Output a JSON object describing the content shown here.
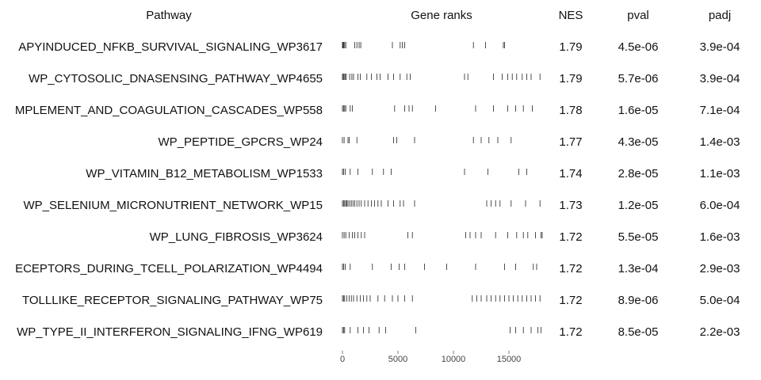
{
  "chart_data": {
    "type": "gsea_table",
    "columns": [
      "Pathway",
      "Gene ranks",
      "NES",
      "pval",
      "padj"
    ],
    "xlim": [
      0,
      18000
    ],
    "xticks": [
      0,
      5000,
      10000,
      15000
    ],
    "rows": [
      {
        "pathway": "APYINDUCED_NFKB_SURVIVAL_SIGNALING_WP3617",
        "nes": 1.79,
        "pval": "4.5e-06",
        "padj": "3.9e-04",
        "ranks": [
          0,
          60,
          120,
          200,
          300,
          1100,
          1300,
          1500,
          1650,
          4500,
          5200,
          5400,
          5600,
          11800,
          12900,
          14500,
          14600
        ]
      },
      {
        "pathway": "WP_CYTOSOLIC_DNASENSING_PATHWAY_WP4655",
        "nes": 1.79,
        "pval": "5.7e-06",
        "padj": "3.9e-04",
        "ranks": [
          0,
          80,
          150,
          250,
          350,
          650,
          850,
          1000,
          1400,
          1600,
          2200,
          2600,
          3100,
          3400,
          4100,
          4600,
          5200,
          5800,
          6100,
          11000,
          11300,
          13600,
          14400,
          14900,
          15300,
          15700,
          16200,
          16600,
          17000,
          17800
        ]
      },
      {
        "pathway": "MPLEMENT_AND_COAGULATION_CASCADES_WP558",
        "nes": 1.78,
        "pval": "1.6e-05",
        "padj": "7.1e-04",
        "ranks": [
          0,
          100,
          200,
          300,
          700,
          900,
          4700,
          5600,
          6000,
          6300,
          8400,
          12000,
          13600,
          14900,
          15600,
          16300,
          17100
        ]
      },
      {
        "pathway": "WP_PEPTIDE_GPCRS_WP24",
        "nes": 1.77,
        "pval": "4.3e-05",
        "padj": "1.4e-03",
        "ranks": [
          0,
          150,
          500,
          600,
          1300,
          4600,
          4900,
          6500,
          11800,
          12500,
          13200,
          14000,
          15200
        ]
      },
      {
        "pathway": "WP_VITAMIN_B12_METABOLISM_WP1533",
        "nes": 1.74,
        "pval": "2.8e-05",
        "padj": "1.1e-03",
        "ranks": [
          0,
          100,
          250,
          700,
          1400,
          2700,
          3700,
          4400,
          11000,
          13100,
          15900,
          16600
        ]
      },
      {
        "pathway": "WP_SELENIUM_MICRONUTRIENT_NETWORK_WP15",
        "nes": 1.73,
        "pval": "1.2e-05",
        "padj": "6.0e-04",
        "ranks": [
          0,
          100,
          200,
          300,
          400,
          500,
          650,
          800,
          950,
          1100,
          1300,
          1500,
          1700,
          2000,
          2300,
          2600,
          2900,
          3200,
          3500,
          4100,
          4600,
          5200,
          5500,
          6500,
          13000,
          13400,
          13800,
          14200,
          15200,
          16500,
          17800
        ]
      },
      {
        "pathway": "WP_LUNG_FIBROSIS_WP3624",
        "nes": 1.72,
        "pval": "5.5e-05",
        "padj": "1.6e-03",
        "ranks": [
          0,
          150,
          300,
          600,
          900,
          1100,
          1400,
          1700,
          2000,
          5900,
          6300,
          11100,
          11500,
          12000,
          12500,
          13800,
          14900,
          15700,
          16300,
          16700,
          17400,
          17900,
          18000
        ]
      },
      {
        "pathway": "ECEPTORS_DURING_TCELL_POLARIZATION_WP4494",
        "nes": 1.72,
        "pval": "1.3e-04",
        "padj": "2.9e-03",
        "ranks": [
          0,
          100,
          250,
          700,
          2700,
          4400,
          5100,
          5600,
          7400,
          9400,
          12000,
          14600,
          15600,
          17200,
          17500
        ]
      },
      {
        "pathway": "TOLLLIKE_RECEPTOR_SIGNALING_PATHWAY_WP75",
        "nes": 1.72,
        "pval": "8.9e-06",
        "padj": "5.0e-04",
        "ranks": [
          0,
          100,
          200,
          400,
          600,
          800,
          1000,
          1300,
          1600,
          1900,
          2200,
          2500,
          3200,
          3800,
          4500,
          5000,
          5600,
          6300,
          11700,
          12100,
          12500,
          13000,
          13400,
          13800,
          14200,
          14600,
          15000,
          15400,
          15800,
          16200,
          16600,
          17000,
          17400,
          17800
        ]
      },
      {
        "pathway": "WP_TYPE_II_INTERFERON_SIGNALING_IFNG_WP619",
        "nes": 1.72,
        "pval": "8.5e-05",
        "padj": "2.2e-03",
        "ranks": [
          0,
          100,
          200,
          700,
          1400,
          1900,
          2400,
          3300,
          3900,
          6600,
          15100,
          15600,
          16300,
          17000,
          17600,
          17900
        ]
      }
    ]
  }
}
